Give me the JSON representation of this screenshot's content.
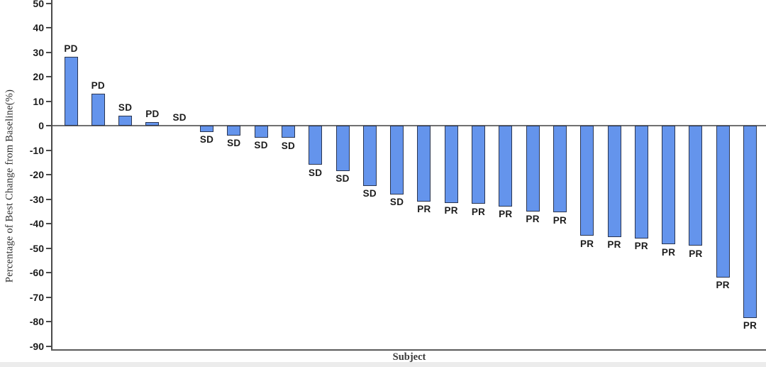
{
  "chart_data": {
    "type": "bar",
    "subtype": "waterfall",
    "title": "",
    "xlabel": "Subject",
    "ylabel": "Percentage of Best Change from Baseline(%)",
    "ylim": [
      -90,
      50
    ],
    "ytick_step": 10,
    "yticks": [
      50,
      40,
      30,
      20,
      10,
      0,
      -10,
      -20,
      -30,
      -40,
      -50,
      -60,
      -70,
      -80,
      -90
    ],
    "grid": false,
    "legend": false,
    "x_tick_labels": [],
    "points": [
      {
        "label": "PD",
        "value": 28
      },
      {
        "label": "PD",
        "value": 13
      },
      {
        "label": "SD",
        "value": 4
      },
      {
        "label": "PD",
        "value": 1.5
      },
      {
        "label": "SD",
        "value": 0
      },
      {
        "label": "SD",
        "value": -2.5
      },
      {
        "label": "SD",
        "value": -4
      },
      {
        "label": "SD",
        "value": -4.8
      },
      {
        "label": "SD",
        "value": -5
      },
      {
        "label": "SD",
        "value": -16
      },
      {
        "label": "SD",
        "value": -18.5
      },
      {
        "label": "SD",
        "value": -24.5
      },
      {
        "label": "SD",
        "value": -28
      },
      {
        "label": "PR",
        "value": -31
      },
      {
        "label": "PR",
        "value": -31.5
      },
      {
        "label": "PR",
        "value": -32
      },
      {
        "label": "PR",
        "value": -33
      },
      {
        "label": "PR",
        "value": -35
      },
      {
        "label": "PR",
        "value": -35.5
      },
      {
        "label": "PR",
        "value": -45
      },
      {
        "label": "PR",
        "value": -45.5
      },
      {
        "label": "PR",
        "value": -46
      },
      {
        "label": "PR",
        "value": -48.5
      },
      {
        "label": "PR",
        "value": -49
      },
      {
        "label": "PR",
        "value": -62
      },
      {
        "label": "PR",
        "value": -78.5
      }
    ],
    "colors": {
      "bar_fill": "#6494EC",
      "bar_border": "#2A3550",
      "axis_line": "#4a4a4a",
      "zero_line": "#707070",
      "bottom_line": "#5a5a5a",
      "text": "#1c1c1c",
      "background": "#FFFFFF",
      "bottom_strip": "#ECECEC"
    }
  }
}
